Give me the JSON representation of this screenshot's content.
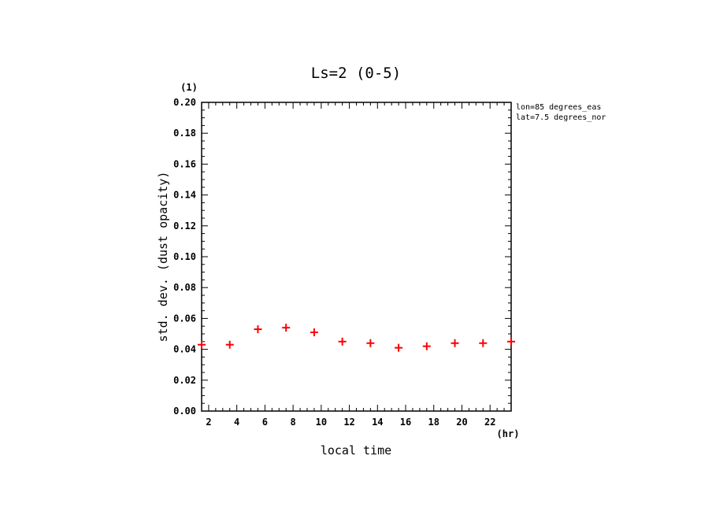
{
  "chart_data": {
    "type": "scatter",
    "title": "Ls=2 (0-5)",
    "xlabel": "local time",
    "ylabel": "std. dev. (dust opacity)",
    "x_unit": "(hr)",
    "y_unit": "(1)",
    "annotations": [
      "lon=85 degrees_eas",
      "lat=7.5 degrees_nor"
    ],
    "xlim": [
      1.5,
      23.5
    ],
    "ylim": [
      0.0,
      0.2
    ],
    "x_ticks": [
      2,
      4,
      6,
      8,
      10,
      12,
      14,
      16,
      18,
      20,
      22
    ],
    "y_ticks": [
      "0.00",
      "0.02",
      "0.04",
      "0.06",
      "0.08",
      "0.10",
      "0.12",
      "0.14",
      "0.16",
      "0.18",
      "0.20"
    ],
    "marker": "+",
    "marker_color": "#ff0000",
    "grid": false,
    "points": [
      {
        "x": 1.5,
        "y": 0.043
      },
      {
        "x": 3.5,
        "y": 0.043
      },
      {
        "x": 5.5,
        "y": 0.053
      },
      {
        "x": 7.5,
        "y": 0.054
      },
      {
        "x": 9.5,
        "y": 0.051
      },
      {
        "x": 11.5,
        "y": 0.045
      },
      {
        "x": 13.5,
        "y": 0.044
      },
      {
        "x": 15.5,
        "y": 0.041
      },
      {
        "x": 17.5,
        "y": 0.042
      },
      {
        "x": 19.5,
        "y": 0.044
      },
      {
        "x": 21.5,
        "y": 0.044
      },
      {
        "x": 23.5,
        "y": 0.045
      }
    ]
  }
}
